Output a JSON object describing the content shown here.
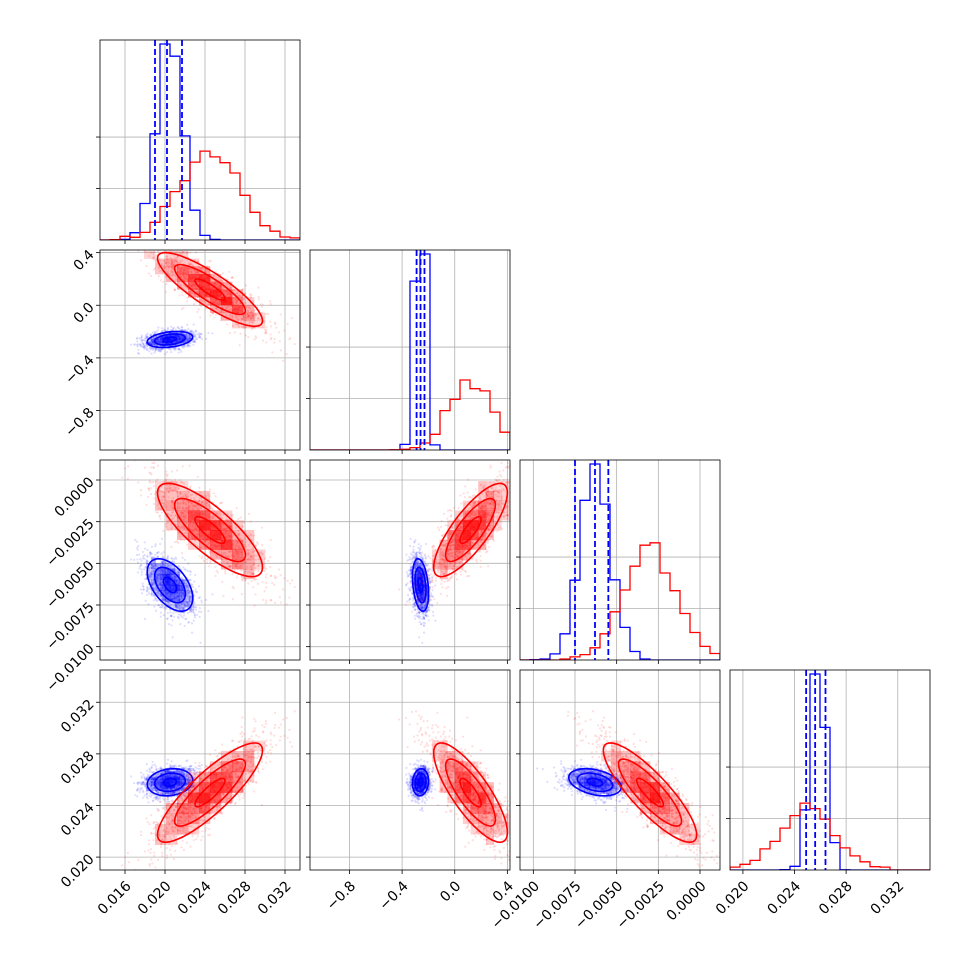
{
  "chart_data": {
    "type": "corner",
    "title": "",
    "grid": true,
    "colors": {
      "blue": "#0000ff",
      "red": "#ff0000"
    },
    "series": [
      {
        "color": "#0000ff",
        "mean": [
          0.0205,
          -0.26,
          -0.0063,
          0.0258
        ],
        "std": [
          0.0013,
          0.035,
          0.0009,
          0.0006
        ],
        "corr": [
          [
            1,
            0.3,
            -0.5,
            0.15
          ],
          [
            0.3,
            1,
            -0.3,
            0.1
          ],
          [
            -0.5,
            -0.3,
            1,
            -0.35
          ],
          [
            0.15,
            0.1,
            -0.35,
            1
          ]
        ],
        "quantile_lines": [
          [
            0.019,
            0.0202,
            0.0217
          ],
          [
            -0.29,
            -0.26,
            -0.23
          ],
          [
            -0.0075,
            -0.0063,
            -0.0055
          ],
          [
            0.0249,
            0.0256,
            0.0264
          ]
        ]
      },
      {
        "color": "#ff0000",
        "mean": [
          0.0245,
          0.12,
          -0.003,
          0.025
        ],
        "std": [
          0.003,
          0.16,
          0.0016,
          0.0022
        ],
        "corr": [
          [
            1,
            -0.85,
            -0.8,
            0.85
          ],
          [
            -0.85,
            1,
            0.8,
            -0.8
          ],
          [
            -0.8,
            0.8,
            1,
            -0.85
          ],
          [
            0.85,
            -0.8,
            -0.85,
            1
          ]
        ]
      }
    ],
    "params": [
      {
        "range": [
          0.0135,
          0.0335
        ],
        "ticks": [
          0.016,
          0.02,
          0.024,
          0.028,
          0.032
        ],
        "tick_labels": [
          "0.016",
          "0.020",
          "0.024",
          "0.028",
          "0.032"
        ]
      },
      {
        "range": [
          -1.1,
          0.42
        ],
        "ticks": [
          -0.8,
          -0.4,
          0.0,
          0.4
        ],
        "tick_labels": [
          "−0.8",
          "−0.4",
          "0.0",
          "0.4"
        ]
      },
      {
        "range": [
          -0.0108,
          0.0012
        ],
        "ticks": [
          -0.01,
          -0.0075,
          -0.005,
          -0.0025,
          0.0
        ],
        "tick_labels": [
          "−0.0100",
          "−0.0075",
          "−0.0050",
          "−0.0025",
          "0.0000"
        ]
      },
      {
        "range": [
          0.019,
          0.0345
        ],
        "ticks": [
          0.02,
          0.024,
          0.028,
          0.032
        ],
        "tick_labels": [
          "0.020",
          "0.024",
          "0.028",
          "0.032"
        ]
      }
    ]
  }
}
